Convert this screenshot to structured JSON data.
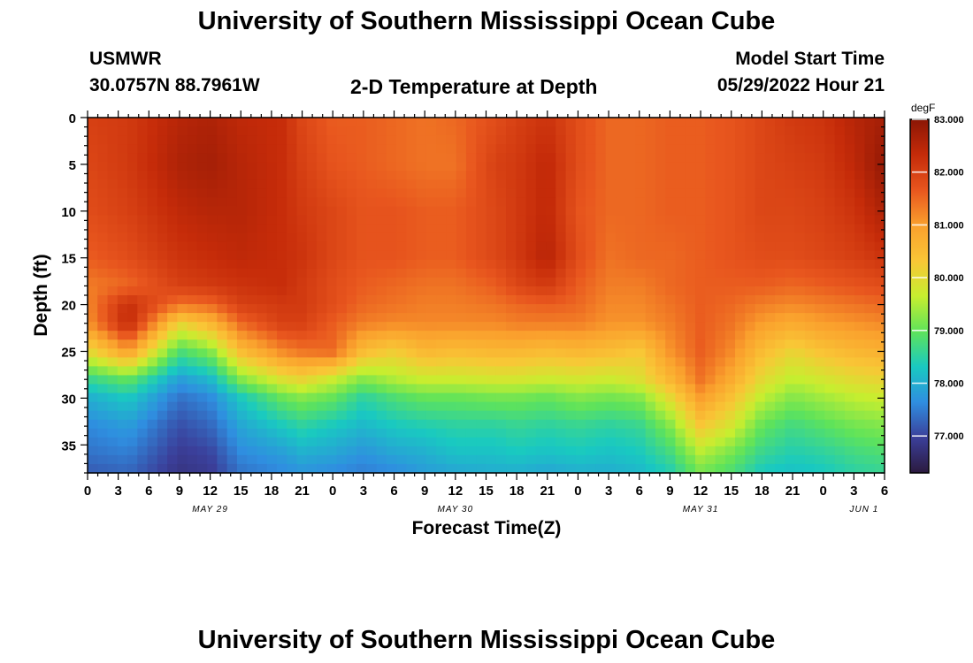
{
  "header": {
    "title": "University of Southern Mississippi Ocean Cube",
    "station": "USMWR",
    "coords": "30.0757N  88.7961W",
    "plot_title": "2-D Temperature at Depth",
    "start_label": "Model Start Time",
    "start_value": "05/29/2022 Hour 21"
  },
  "footer": {
    "title": "University of Southern Mississippi Ocean Cube"
  },
  "chart_data": {
    "type": "heatmap",
    "title": "2-D Temperature at Depth",
    "xlabel": "Forecast Time(Z)",
    "ylabel": "Depth (ft)",
    "x_unit": "hours since 2022-05-29 00Z",
    "xlim": [
      0,
      78
    ],
    "ylim": [
      38,
      0
    ],
    "x_ticks": [
      0,
      3,
      6,
      9,
      12,
      15,
      18,
      21,
      24,
      27,
      30,
      33,
      36,
      39,
      42,
      45,
      48,
      51,
      54,
      57,
      60,
      63,
      66,
      69,
      72,
      75,
      78
    ],
    "x_tick_labels": [
      "0",
      "3",
      "6",
      "9",
      "12",
      "15",
      "18",
      "21",
      "0",
      "3",
      "6",
      "9",
      "12",
      "15",
      "18",
      "21",
      "0",
      "3",
      "6",
      "9",
      "12",
      "15",
      "18",
      "21",
      "0",
      "3",
      "6"
    ],
    "y_ticks": [
      0,
      5,
      10,
      15,
      20,
      25,
      30,
      35
    ],
    "y_tick_labels": [
      "0",
      "5",
      "10",
      "15",
      "20",
      "25",
      "30",
      "35"
    ],
    "date_labels": [
      {
        "hour": 12,
        "label": "MAY 29"
      },
      {
        "hour": 36,
        "label": "MAY 30"
      },
      {
        "hour": 60,
        "label": "MAY 31"
      },
      {
        "hour": 76,
        "label": "JUN 1"
      }
    ],
    "colorbar": {
      "unit": "degF",
      "range": [
        76.3,
        83.0
      ],
      "tick_values": [
        83.0,
        82.0,
        81.0,
        80.0,
        79.0,
        78.0,
        77.0
      ],
      "tick_labels": [
        "83.000",
        "82.000",
        "81.000",
        "80.000",
        "79.000",
        "78.000",
        "77.000"
      ],
      "colors": [
        "#2b1a3e",
        "#3b3f9a",
        "#2f8ee0",
        "#19c9c1",
        "#5fe35a",
        "#c7ee2f",
        "#f9c636",
        "#faa02d",
        "#e8561e",
        "#c52b09",
        "#8b1605"
      ]
    },
    "profile_times": [
      0,
      4,
      9,
      12,
      15,
      19,
      21,
      24,
      27,
      30,
      33,
      36,
      40,
      42,
      45,
      48,
      51,
      54,
      57,
      60,
      63,
      66,
      69,
      72,
      75,
      78
    ],
    "profile_depths": [
      0,
      5,
      10,
      15,
      18,
      20,
      22,
      25,
      28,
      30,
      33,
      36,
      38
    ],
    "temperature_degF": [
      [
        82.0,
        81.9,
        81.8,
        81.6,
        81.3,
        81.2,
        81.1,
        80.0,
        78.6,
        78.0,
        77.6,
        77.4,
        77.2
      ],
      [
        82.1,
        82.1,
        82.0,
        81.8,
        81.5,
        82.3,
        82.4,
        81.0,
        79.0,
        78.3,
        77.8,
        77.5,
        77.3
      ],
      [
        82.5,
        82.6,
        82.4,
        82.2,
        82.0,
        81.4,
        80.1,
        78.8,
        77.8,
        77.4,
        77.1,
        76.9,
        76.8
      ],
      [
        82.6,
        82.7,
        82.5,
        82.3,
        82.1,
        81.5,
        80.6,
        79.2,
        78.1,
        77.6,
        77.3,
        77.0,
        76.9
      ],
      [
        82.4,
        82.5,
        82.5,
        82.4,
        82.2,
        82.0,
        81.5,
        80.5,
        79.2,
        78.3,
        77.9,
        77.6,
        77.4
      ],
      [
        82.3,
        82.3,
        82.3,
        82.3,
        82.3,
        82.1,
        82.0,
        81.2,
        79.9,
        79.0,
        78.3,
        77.8,
        77.6
      ],
      [
        81.9,
        82.0,
        82.1,
        82.2,
        82.1,
        82.1,
        82.0,
        81.4,
        80.1,
        79.2,
        78.5,
        78.0,
        77.7
      ],
      [
        81.6,
        81.7,
        81.9,
        81.9,
        81.8,
        81.8,
        81.6,
        81.5,
        79.7,
        79.0,
        78.3,
        77.9,
        77.6
      ],
      [
        81.6,
        81.6,
        81.7,
        81.7,
        81.6,
        81.5,
        81.3,
        80.5,
        79.2,
        78.5,
        78.1,
        77.7,
        77.5
      ],
      [
        81.5,
        81.5,
        81.7,
        81.7,
        81.5,
        81.4,
        81.2,
        80.2,
        79.5,
        78.8,
        78.3,
        77.9,
        77.6
      ],
      [
        81.4,
        81.4,
        81.6,
        81.6,
        81.4,
        81.3,
        81.2,
        80.6,
        79.7,
        79.0,
        78.4,
        78.0,
        77.8
      ],
      [
        81.5,
        81.4,
        81.6,
        81.6,
        81.4,
        81.3,
        81.2,
        80.5,
        79.7,
        79.0,
        78.5,
        78.2,
        77.9
      ],
      [
        81.8,
        82.0,
        81.9,
        81.9,
        81.6,
        81.4,
        81.2,
        80.6,
        79.8,
        79.1,
        78.5,
        78.2,
        78.0
      ],
      [
        82.0,
        82.1,
        82.1,
        82.1,
        81.9,
        81.5,
        81.3,
        80.6,
        79.8,
        79.1,
        78.6,
        78.3,
        78.0
      ],
      [
        82.2,
        82.4,
        82.4,
        82.5,
        82.1,
        81.6,
        81.3,
        80.5,
        79.7,
        79.0,
        78.5,
        78.2,
        77.9
      ],
      [
        81.8,
        81.8,
        81.7,
        81.8,
        81.6,
        81.5,
        81.3,
        80.6,
        79.8,
        79.2,
        78.6,
        78.3,
        78.0
      ],
      [
        81.5,
        81.5,
        81.5,
        81.4,
        81.3,
        81.2,
        81.1,
        80.5,
        79.7,
        79.1,
        78.5,
        78.2,
        78.0
      ],
      [
        81.5,
        81.5,
        81.5,
        81.5,
        81.3,
        81.2,
        81.1,
        80.3,
        79.9,
        79.2,
        78.6,
        78.3,
        78.1
      ],
      [
        81.6,
        81.6,
        81.6,
        81.5,
        81.5,
        81.4,
        81.3,
        81.1,
        80.6,
        80.0,
        79.2,
        78.7,
        78.4
      ],
      [
        81.6,
        81.6,
        81.6,
        81.6,
        81.6,
        81.6,
        81.6,
        81.6,
        81.4,
        81.0,
        80.3,
        79.5,
        79.1
      ],
      [
        81.7,
        81.7,
        81.7,
        81.7,
        81.6,
        81.5,
        81.4,
        81.2,
        80.8,
        80.4,
        79.8,
        79.1,
        78.8
      ],
      [
        81.9,
        81.9,
        81.9,
        81.8,
        81.6,
        81.3,
        81.0,
        80.5,
        80.0,
        79.6,
        79.0,
        78.6,
        78.3
      ],
      [
        82.1,
        82.0,
        81.9,
        81.8,
        81.5,
        81.2,
        80.8,
        80.1,
        79.6,
        79.2,
        78.7,
        78.4,
        78.2
      ],
      [
        82.2,
        82.1,
        82.0,
        81.9,
        81.6,
        81.3,
        81.0,
        80.4,
        79.8,
        79.4,
        78.9,
        78.5,
        78.3
      ],
      [
        82.5,
        82.4,
        82.2,
        82.0,
        81.7,
        81.4,
        81.1,
        80.6,
        80.0,
        79.6,
        79.1,
        78.7,
        78.5
      ],
      [
        82.7,
        82.9,
        82.6,
        82.2,
        81.8,
        81.5,
        81.2,
        80.7,
        80.1,
        79.7,
        79.2,
        78.8,
        78.6
      ]
    ]
  }
}
